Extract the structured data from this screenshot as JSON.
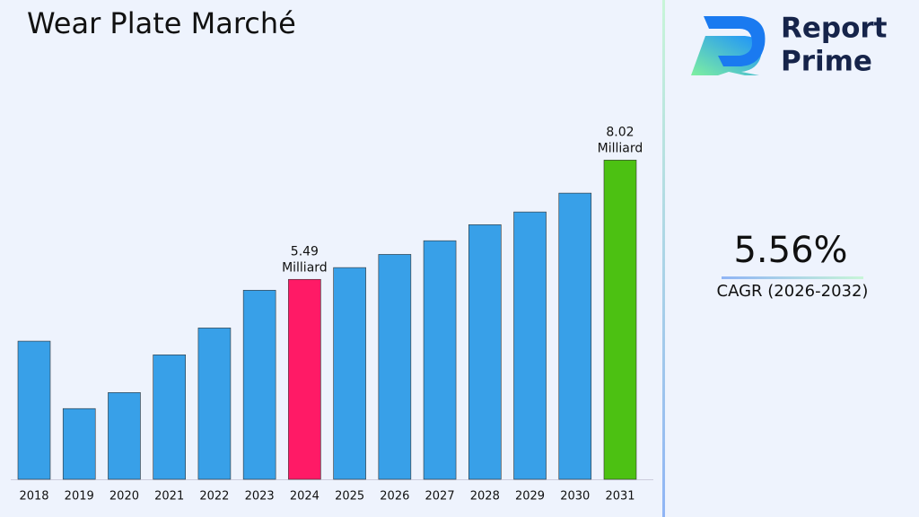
{
  "chart_data": {
    "type": "bar",
    "title": "Wear Plate Marché",
    "categories": [
      "2018",
      "2019",
      "2020",
      "2021",
      "2022",
      "2023",
      "2024",
      "2025",
      "2026",
      "2027",
      "2028",
      "2029",
      "2030",
      "2031"
    ],
    "values": [
      4.18,
      2.75,
      3.09,
      3.89,
      4.46,
      5.26,
      5.49,
      5.74,
      6.02,
      6.31,
      6.65,
      6.92,
      7.32,
      8.02
    ],
    "value_labels": [
      null,
      null,
      null,
      null,
      null,
      null,
      "5.49",
      null,
      null,
      null,
      null,
      null,
      null,
      "8.02"
    ],
    "value_label_unit": "Milliard",
    "colors": [
      "#38a0e8",
      "#38a0e8",
      "#38a0e8",
      "#38a0e8",
      "#38a0e8",
      "#38a0e8",
      "#ff1a66",
      "#38a0e8",
      "#38a0e8",
      "#38a0e8",
      "#38a0e8",
      "#38a0e8",
      "#38a0e8",
      "#4cc112"
    ],
    "ylim": [
      1.25,
      8.75
    ]
  },
  "side_panel": {
    "cagr": "5.56%",
    "cagr_label": "CAGR (2026-2032)"
  },
  "logo": {
    "line1": "Report",
    "line2": "Prime"
  }
}
